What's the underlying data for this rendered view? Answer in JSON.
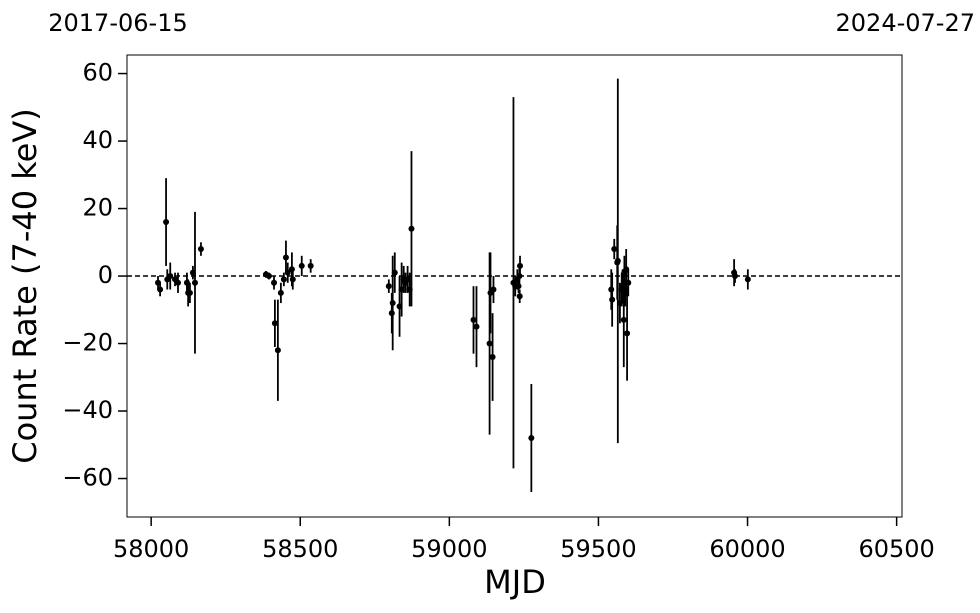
{
  "chart_data": {
    "type": "errorbar",
    "x_label": "MJD",
    "y_label": "Count Rate (7-40 keV)",
    "annotations": {
      "top_left": "2017-06-15",
      "top_right": "2024-07-27"
    },
    "xlim": [
      57919,
      60518
    ],
    "ylim": [
      -71.4,
      65.5
    ],
    "xticks": [
      58000,
      58500,
      59000,
      59500,
      60000,
      60500
    ],
    "yticks": [
      {
        "value": -60,
        "label": "−60"
      },
      {
        "value": -40,
        "label": "−40"
      },
      {
        "value": -20,
        "label": "−20"
      },
      0,
      20,
      40,
      60
    ],
    "hline": 0,
    "color": "#000000",
    "x": [
      58023,
      58030,
      58050,
      58054,
      58064,
      58080,
      58090,
      58120,
      58124,
      58130,
      58140,
      58147,
      58167,
      58385,
      58395,
      58412,
      58415,
      58425,
      58435,
      58445,
      58452,
      58458,
      58472,
      58475,
      58505,
      58535,
      58797,
      58807,
      58810,
      58817,
      58833,
      58840,
      58847,
      58853,
      58860,
      58867,
      58873,
      59081,
      59091,
      59135,
      59138,
      59145,
      59148,
      59215,
      59221,
      59228,
      59232,
      59235,
      59236,
      59237,
      59275,
      59543,
      59546,
      59553,
      59563,
      59565,
      59572,
      59578,
      59581,
      59585,
      59587,
      59590,
      59593,
      59596,
      59600,
      59955,
      59958,
      60001
    ],
    "values": [
      -2,
      -4,
      16,
      -1,
      0,
      -1,
      -2,
      -2,
      -5,
      -5,
      1,
      -2,
      8,
      0.5,
      0,
      -2,
      -14,
      -22,
      -5,
      -1,
      5.5,
      1,
      2,
      -1,
      3,
      3,
      -3,
      -11,
      -8,
      1,
      -9,
      -4,
      -1,
      -2,
      -1,
      -4,
      14,
      -13,
      -15,
      -20,
      -5,
      -24,
      -4,
      -2,
      -3,
      -1,
      -3,
      0,
      -6,
      3,
      -48,
      -4,
      -7,
      8,
      4,
      4.5,
      -8,
      -4,
      -3,
      -13,
      1,
      -5,
      2,
      -17,
      -2,
      1,
      0,
      -1
    ],
    "errors": [
      2,
      2,
      13,
      3,
      4,
      2,
      3,
      3,
      4,
      3,
      2,
      21,
      2,
      1,
      1,
      2,
      7,
      15,
      3,
      2,
      5,
      3,
      5,
      3,
      3,
      2,
      2,
      6,
      14,
      6,
      9,
      8,
      4,
      3,
      4,
      5,
      23,
      10,
      12,
      27,
      12,
      13,
      4,
      55,
      3,
      3,
      2,
      3,
      2,
      3,
      16,
      6,
      8,
      3,
      11,
      54,
      6,
      5,
      5,
      14,
      5,
      4,
      6,
      14,
      4,
      4,
      2,
      3
    ]
  }
}
